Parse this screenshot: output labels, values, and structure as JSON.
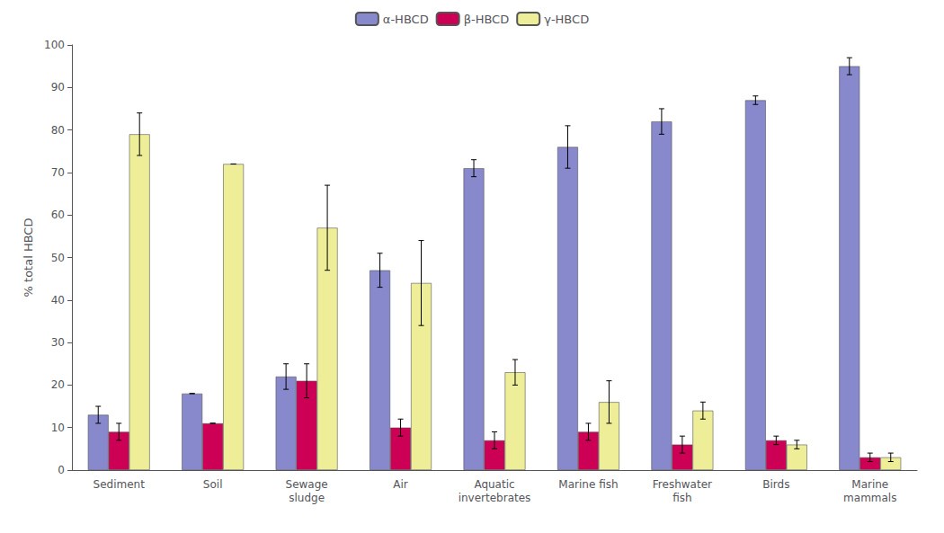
{
  "chart_data": {
    "type": "bar",
    "categories": [
      "Sediment",
      "Soil",
      "Sewage\nsludge",
      "Air",
      "Aquatic\ninvertebrates",
      "Marine fish",
      "Freshwater\nfish",
      "Birds",
      "Marine\nmammals"
    ],
    "series": [
      {
        "name": "α-HBCD",
        "color": "#8888cc",
        "values": [
          13,
          18,
          22,
          47,
          71,
          76,
          82,
          87,
          95
        ],
        "errors": [
          2,
          0,
          3,
          4,
          2,
          5,
          3,
          1,
          2
        ]
      },
      {
        "name": "β-HBCD",
        "color": "#cc0055",
        "values": [
          9,
          11,
          21,
          10,
          7,
          9,
          6,
          7,
          3
        ],
        "errors": [
          2,
          0,
          4,
          2,
          2,
          2,
          2,
          1,
          1
        ]
      },
      {
        "name": "γ-HBCD",
        "color": "#eeee99",
        "values": [
          79,
          72,
          57,
          44,
          23,
          16,
          14,
          6,
          3
        ],
        "errors": [
          5,
          0,
          10,
          10,
          3,
          5,
          2,
          1,
          1
        ]
      }
    ],
    "ylabel": "% total HBCD",
    "ylim": [
      0,
      100
    ],
    "yticks": [
      0,
      10,
      20,
      30,
      40,
      50,
      60,
      70,
      80,
      90,
      100
    ],
    "grid": false,
    "legend": "upper center"
  }
}
